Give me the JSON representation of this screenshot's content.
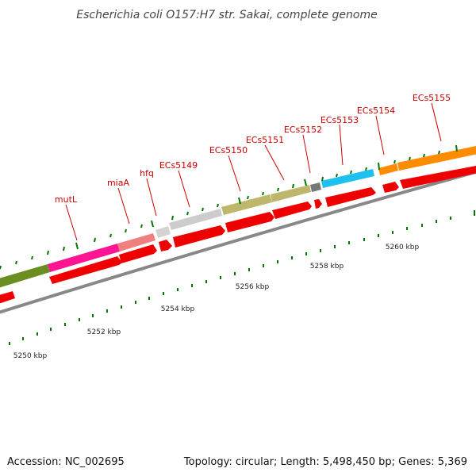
{
  "title": "Escherichia coli O157:H7 str. Sakai, complete genome",
  "footer": {
    "accession": "Accession: NC_002695",
    "summary": "Topology: circular; Length: 5,498,450 bp; Genes: 5,369"
  },
  "colors": {
    "cds_strand": "#ff0000",
    "backbone": "#888888",
    "tick": "#007700",
    "label_line": "#cc0000"
  },
  "genes": [
    {
      "name": "",
      "color": "#6b8e23"
    },
    {
      "name": "mutL",
      "color": "#ff1493"
    },
    {
      "name": "miaA",
      "color": "#f08080"
    },
    {
      "name": "hfq",
      "color": "#d3d3d3"
    },
    {
      "name": "ECs5149",
      "color": "#d3d3d3"
    },
    {
      "name": "ECs5150",
      "color": "#bdb76b"
    },
    {
      "name": "ECs5151",
      "color": "#bdb76b"
    },
    {
      "name": "ECs5152",
      "color": "#808080"
    },
    {
      "name": "ECs5153",
      "color": "#00bfff"
    },
    {
      "name": "ECs5154",
      "color": "#ff8c00"
    },
    {
      "name": "ECs5155",
      "color": "#ff8c00"
    }
  ],
  "scale_labels": [
    "5250 kbp",
    "5252 kbp",
    "5254 kbp",
    "5256 kbp",
    "5258 kbp",
    "5260 kbp"
  ]
}
